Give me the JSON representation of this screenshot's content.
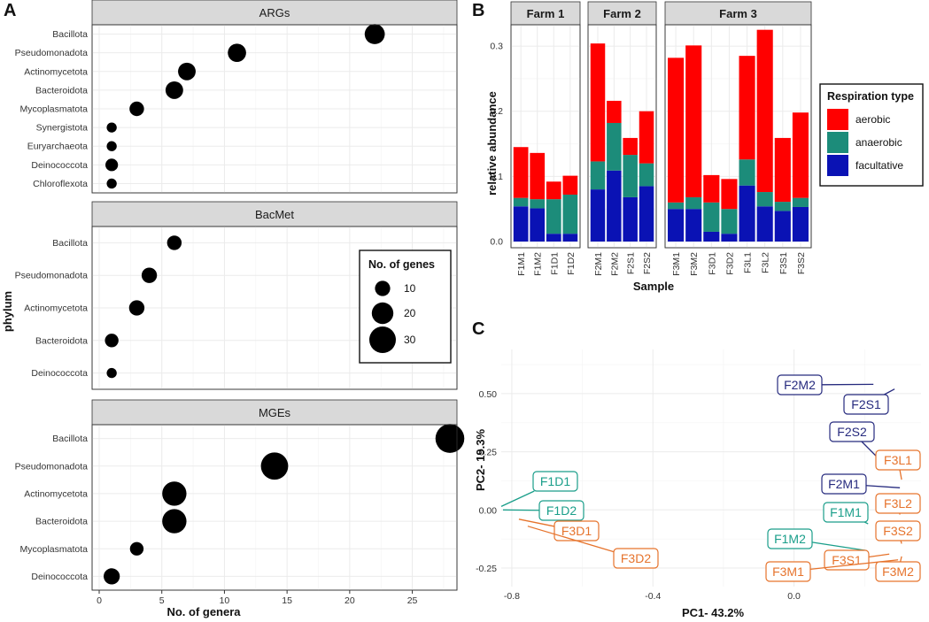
{
  "colors": {
    "aerobic": "#ff0000",
    "anaerobic": "#1c8c7a",
    "facultative": "#0a12b4",
    "farm1_pca": "#1a9e8a",
    "farm2_pca": "#262a7e",
    "farm3_pca": "#e6732c"
  },
  "chart_data": [
    {
      "panel": "A",
      "type": "scatter",
      "subtype": "bubble-facets",
      "xlabel": "No. of genera",
      "ylabel": "phylum",
      "xlim": [
        0,
        29
      ],
      "xticks": [
        0,
        5,
        10,
        15,
        20,
        25
      ],
      "legend": {
        "title": "No. of genes",
        "sizes": [
          10,
          20,
          30
        ],
        "placement": "inside-right"
      },
      "facets": [
        {
          "title": "ARGs",
          "categories": [
            "Bacillota",
            "Pseudomonadota",
            "Actinomycetota",
            "Bacteroidota",
            "Mycoplasmatota",
            "Synergistota",
            "Euryarchaeota",
            "Deinococcota",
            "Chloroflexota"
          ],
          "x": [
            22,
            11,
            7,
            6,
            3,
            1,
            1,
            1,
            1
          ],
          "genes": [
            14,
            11,
            10,
            10,
            6,
            2,
            2,
            4,
            2
          ]
        },
        {
          "title": "BacMet",
          "categories": [
            "Bacillota",
            "Pseudomonadota",
            "Actinomycetota",
            "Bacteroidota",
            "Deinococcota"
          ],
          "x": [
            6,
            4,
            3,
            1,
            1
          ],
          "genes": [
            6,
            7,
            7,
            5,
            2
          ]
        },
        {
          "title": "MGEs",
          "categories": [
            "Bacillota",
            "Pseudomonadota",
            "Actinomycetota",
            "Bacteroidota",
            "Mycoplasmatota",
            "Deinococcota"
          ],
          "x": [
            28,
            14,
            6,
            6,
            3,
            1
          ],
          "genes": [
            33,
            29,
            22,
            22,
            5,
            8
          ]
        }
      ]
    },
    {
      "panel": "B",
      "type": "bar",
      "subtype": "stacked-facets",
      "xlabel": "Sample",
      "ylabel": "relative abundance",
      "ylim": [
        0,
        0.33
      ],
      "yticks": [
        "0.0",
        "0.1",
        "0.2",
        "0.3"
      ],
      "legend": {
        "title": "Respiration type",
        "entries": [
          "aerobic",
          "anaerobic",
          "facultative"
        ],
        "placement": "right"
      },
      "facets": [
        {
          "title": "Farm 1",
          "categories": [
            "F1M1",
            "F1M2",
            "F1D1",
            "F1D2"
          ],
          "series": [
            {
              "name": "facultative",
              "values": [
                0.054,
                0.051,
                0.012,
                0.012
              ]
            },
            {
              "name": "anaerobic",
              "values": [
                0.013,
                0.014,
                0.053,
                0.06
              ]
            },
            {
              "name": "aerobic",
              "values": [
                0.078,
                0.071,
                0.027,
                0.029
              ]
            }
          ]
        },
        {
          "title": "Farm 2",
          "categories": [
            "F2M1",
            "F2M2",
            "F2S1",
            "F2S2"
          ],
          "series": [
            {
              "name": "facultative",
              "values": [
                0.08,
                0.109,
                0.068,
                0.085
              ]
            },
            {
              "name": "anaerobic",
              "values": [
                0.043,
                0.073,
                0.065,
                0.035
              ]
            },
            {
              "name": "aerobic",
              "values": [
                0.181,
                0.034,
                0.026,
                0.08
              ]
            }
          ]
        },
        {
          "title": "Farm 3",
          "categories": [
            "F3M1",
            "F3M2",
            "F3D1",
            "F3D2",
            "F3L1",
            "F3L2",
            "F3S1",
            "F3S2"
          ],
          "series": [
            {
              "name": "facultative",
              "values": [
                0.05,
                0.05,
                0.015,
                0.012,
                0.086,
                0.054,
                0.047,
                0.053
              ]
            },
            {
              "name": "anaerobic",
              "values": [
                0.01,
                0.018,
                0.045,
                0.038,
                0.04,
                0.022,
                0.014,
                0.014
              ]
            },
            {
              "name": "aerobic",
              "values": [
                0.222,
                0.233,
                0.042,
                0.046,
                0.159,
                0.249,
                0.098,
                0.131
              ]
            }
          ]
        }
      ]
    },
    {
      "panel": "C",
      "type": "scatter",
      "subtype": "pca-labels",
      "xlabel": "PC1- 43.2%",
      "ylabel": "PC2- 19.3%",
      "xlim": [
        -0.83,
        0.36
      ],
      "ylim": [
        -0.33,
        0.69
      ],
      "xticks": [
        "-0.8",
        "-0.4",
        "0.0"
      ],
      "yticks": [
        "-0.25",
        "0.00",
        "0.25",
        "0.50"
      ],
      "points": [
        {
          "label": "F2M2",
          "farm": 2,
          "x": 0.225,
          "y": 0.54
        },
        {
          "label": "F2S1",
          "farm": 2,
          "x": 0.285,
          "y": 0.52
        },
        {
          "label": "F2S2",
          "farm": 2,
          "x": 0.26,
          "y": 0.19
        },
        {
          "label": "F2M1",
          "farm": 2,
          "x": 0.3,
          "y": 0.095
        },
        {
          "label": "F1D1",
          "farm": 1,
          "x": -0.83,
          "y": 0.015
        },
        {
          "label": "F1D2",
          "farm": 1,
          "x": -0.825,
          "y": 0.0
        },
        {
          "label": "F1M1",
          "farm": 1,
          "x": 0.21,
          "y": -0.06
        },
        {
          "label": "F1M2",
          "farm": 1,
          "x": 0.205,
          "y": -0.175
        },
        {
          "label": "F3D1",
          "farm": 3,
          "x": -0.78,
          "y": -0.04
        },
        {
          "label": "F3D2",
          "farm": 3,
          "x": -0.755,
          "y": -0.07
        },
        {
          "label": "F3L1",
          "farm": 3,
          "x": 0.305,
          "y": 0.13
        },
        {
          "label": "F3L2",
          "farm": 3,
          "x": 0.3,
          "y": -0.02
        },
        {
          "label": "F3S2",
          "farm": 3,
          "x": 0.305,
          "y": -0.145
        },
        {
          "label": "F3S1",
          "farm": 3,
          "x": 0.27,
          "y": -0.19
        },
        {
          "label": "F3M1",
          "farm": 3,
          "x": 0.295,
          "y": -0.215
        },
        {
          "label": "F3M2",
          "farm": 3,
          "x": 0.305,
          "y": -0.2
        }
      ]
    }
  ],
  "panel_letters": {
    "a": "A",
    "b": "B",
    "c": "C"
  }
}
